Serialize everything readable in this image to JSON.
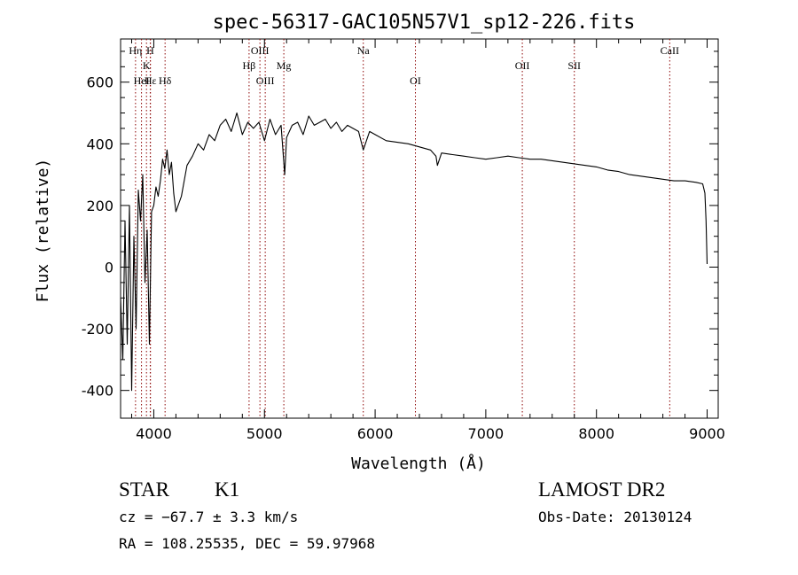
{
  "chart_data": {
    "type": "line",
    "title": "spec-56317-GAC105N57V1_sp12-226.fits",
    "xlabel": "Wavelength (Å)",
    "ylabel": "Flux (relative)",
    "xlim": [
      3700,
      9100
    ],
    "ylim": [
      -490,
      740
    ],
    "x_ticks": [
      4000,
      5000,
      6000,
      7000,
      8000,
      9000
    ],
    "y_ticks": [
      -400,
      -200,
      0,
      200,
      400,
      600
    ],
    "grid": false,
    "line_color": "#000000",
    "marker_color": "#8b0000",
    "series": [
      {
        "x": [
          3700,
          3720,
          3740,
          3760,
          3780,
          3800,
          3820,
          3840,
          3860,
          3880,
          3900,
          3920,
          3940,
          3960,
          3980,
          4000,
          4020,
          4040,
          4060,
          4080,
          4100,
          4120,
          4140,
          4160,
          4180,
          4200,
          4250,
          4300,
          4350,
          4400,
          4450,
          4500,
          4550,
          4600,
          4650,
          4700,
          4750,
          4800,
          4850,
          4900,
          4950,
          5000,
          5050,
          5100,
          5150,
          5183,
          5200,
          5250,
          5300,
          5350,
          5400,
          5450,
          5500,
          5550,
          5600,
          5650,
          5700,
          5750,
          5800,
          5850,
          5893,
          5950,
          6000,
          6100,
          6200,
          6300,
          6400,
          6500,
          6550,
          6563,
          6600,
          6700,
          6800,
          6900,
          7000,
          7100,
          7200,
          7300,
          7400,
          7500,
          7600,
          7700,
          7800,
          7900,
          8000,
          8100,
          8200,
          8300,
          8400,
          8500,
          8600,
          8700,
          8800,
          8900,
          8960,
          8980,
          8990,
          9000
        ],
        "y": [
          -100,
          -300,
          150,
          -250,
          200,
          -400,
          100,
          -200,
          250,
          150,
          300,
          -50,
          120,
          -250,
          180,
          200,
          260,
          230,
          280,
          350,
          320,
          380,
          300,
          340,
          240,
          180,
          230,
          330,
          360,
          400,
          380,
          430,
          410,
          460,
          480,
          440,
          500,
          430,
          470,
          450,
          470,
          410,
          480,
          430,
          460,
          300,
          420,
          460,
          470,
          430,
          490,
          460,
          470,
          480,
          450,
          470,
          440,
          460,
          450,
          440,
          380,
          440,
          430,
          410,
          405,
          400,
          390,
          380,
          360,
          330,
          370,
          365,
          360,
          355,
          350,
          355,
          360,
          355,
          350,
          350,
          345,
          340,
          335,
          330,
          325,
          315,
          310,
          300,
          295,
          290,
          285,
          280,
          280,
          275,
          270,
          240,
          150,
          10
        ]
      }
    ],
    "annotations": [
      {
        "label": "Hη",
        "x": 3835,
        "level": 1
      },
      {
        "label": "H",
        "x": 3968,
        "level": 1
      },
      {
        "label": "K",
        "x": 3934,
        "level": 2
      },
      {
        "label": "Hε",
        "x": 3970,
        "level": 3
      },
      {
        "label": "HeI",
        "x": 3889,
        "level": 3
      },
      {
        "label": "Hδ",
        "x": 4102,
        "level": 3
      },
      {
        "label": "OIII",
        "x": 4959,
        "level": 1
      },
      {
        "label": "Hβ",
        "x": 4861,
        "level": 2
      },
      {
        "label": "Mg",
        "x": 5175,
        "level": 2
      },
      {
        "label": "OIII",
        "x": 5007,
        "level": 3
      },
      {
        "label": "Na",
        "x": 5893,
        "level": 1
      },
      {
        "label": "OI",
        "x": 6364,
        "level": 3
      },
      {
        "label": "OII",
        "x": 7330,
        "level": 2
      },
      {
        "label": "SII",
        "x": 7800,
        "level": 2
      },
      {
        "label": "CaII",
        "x": 8662,
        "level": 1
      }
    ]
  },
  "footer": {
    "object_class": "STAR",
    "subclass": "K1",
    "survey": "LAMOST DR2",
    "cz": "cz = −67.7 ± 3.3 km/s",
    "obs_date": "Obs-Date: 20130124",
    "coords": "RA = 108.25535, DEC =  59.97968"
  }
}
